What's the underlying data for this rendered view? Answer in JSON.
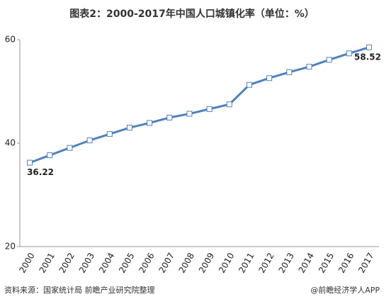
{
  "chart_data": {
    "type": "line",
    "title": "图表2：2000-2017年中国人口城镇化率（单位：%）",
    "categories": [
      "2000",
      "2001",
      "2002",
      "2003",
      "2004",
      "2005",
      "2006",
      "2007",
      "2008",
      "2009",
      "2010",
      "2011",
      "2012",
      "2013",
      "2014",
      "2015",
      "2016",
      "2017"
    ],
    "series": [
      {
        "name": "城镇化率",
        "color": "#4f81bd",
        "values": [
          36.22,
          37.66,
          39.09,
          40.53,
          41.76,
          42.99,
          43.9,
          44.94,
          45.68,
          46.59,
          47.5,
          51.27,
          52.57,
          53.73,
          54.77,
          56.1,
          57.35,
          58.52
        ]
      }
    ],
    "data_labels": [
      0,
      17
    ],
    "ylim": [
      20,
      60
    ],
    "yticks": [
      20,
      40,
      60
    ],
    "grid": false,
    "source": "资料来源：国家统计局  前瞻产业研究院整理",
    "credit": "@前瞻经济学人APP"
  }
}
